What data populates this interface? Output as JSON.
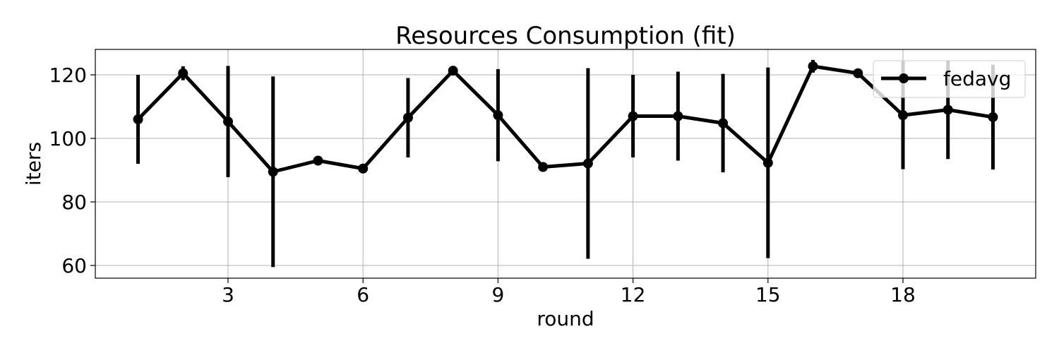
{
  "chart_data": {
    "type": "line",
    "title": "Resources Consumption (fit)",
    "xlabel": "round",
    "ylabel": "iters",
    "xlim": [
      0.05,
      20.95
    ],
    "ylim": [
      56,
      128
    ],
    "xticks": [
      3,
      6,
      9,
      12,
      15,
      18
    ],
    "yticks": [
      60,
      80,
      100,
      120
    ],
    "grid": true,
    "legend_position": "upper right",
    "series": [
      {
        "name": "fedavg",
        "color": "#000000",
        "x": [
          1,
          2,
          3,
          4,
          5,
          6,
          7,
          8,
          9,
          10,
          11,
          12,
          13,
          14,
          15,
          16,
          17,
          18,
          19,
          20
        ],
        "values": [
          106,
          120.5,
          105.3,
          89.5,
          93,
          90.5,
          106.5,
          121.3,
          107.3,
          91,
          92.1,
          107,
          107,
          104.8,
          92.3,
          122.7,
          120.5,
          107.3,
          109,
          106.7
        ],
        "error": [
          14,
          2.2,
          17.5,
          30,
          0.5,
          0.5,
          12.5,
          1.2,
          14.5,
          0.5,
          30,
          13,
          14,
          15.5,
          30,
          2,
          0.5,
          17,
          15.5,
          16.5
        ]
      }
    ]
  }
}
